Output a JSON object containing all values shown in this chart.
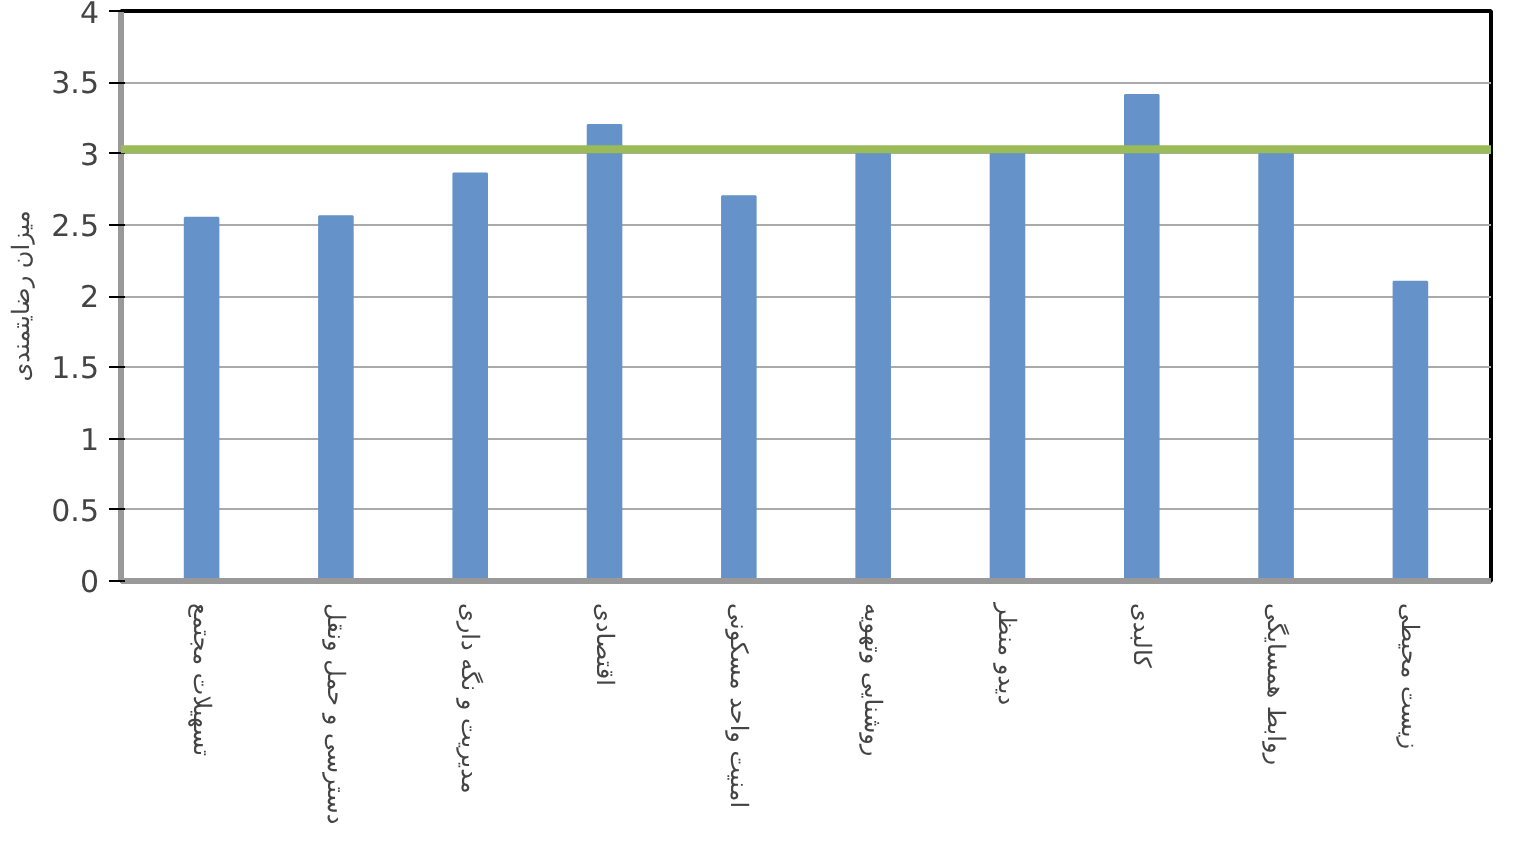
{
  "chart_data": {
    "type": "bar",
    "ylabel": "میزان رضایتمندی",
    "categories": [
      "تسهیلات مجتمع",
      "دسترسی و حمل ونقل",
      "مدیریت و نگه داری",
      "اقتصادی",
      "امنیت واحد مسکونی",
      "روشنایی وتهویه",
      "دیدو منظر",
      "کالبدی",
      "روابط همسایگی",
      "زیست محیطی"
    ],
    "values": [
      2.55,
      2.56,
      2.86,
      3.2,
      2.7,
      3.0,
      3.0,
      3.41,
      3.0,
      2.1
    ],
    "color": "#6592c8",
    "ylim": [
      0,
      4
    ],
    "yticks": [
      0,
      0.5,
      1,
      1.5,
      2,
      2.5,
      3,
      3.5,
      4
    ],
    "grid": "y",
    "ref_lines": [
      {
        "axis": "y",
        "value": 3.03,
        "color": "#9bbb59"
      }
    ]
  }
}
